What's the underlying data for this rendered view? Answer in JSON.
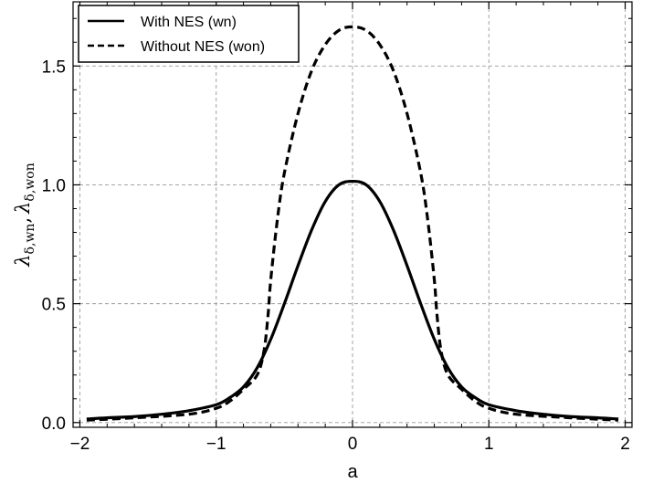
{
  "chart_data": {
    "type": "line",
    "xlabel": "a",
    "ylabel": {
      "symbol1": "λ",
      "sub1": "δ,wn",
      "separator": ",",
      "symbol2": "λ",
      "sub2": "δ,won"
    },
    "xlim": [
      -2.05,
      2.05
    ],
    "ylim": [
      -0.02,
      1.77
    ],
    "x_ticks": [
      -2,
      -1,
      0,
      1,
      2
    ],
    "x_tick_labels": [
      "−2",
      "−1",
      "0",
      "1",
      "2"
    ],
    "y_ticks": [
      0.0,
      0.5,
      1.0,
      1.5
    ],
    "y_tick_labels": [
      "0.0",
      "0.5",
      "1.0",
      "1.5"
    ],
    "grid": true,
    "legend_position": "top-left",
    "series": [
      {
        "name": "With NES (wn)",
        "style": "solid",
        "color": "#000000",
        "x": [
          -1.95,
          -1.8,
          -1.6,
          -1.4,
          -1.2,
          -1.0,
          -0.9,
          -0.8,
          -0.7,
          -0.6,
          -0.5,
          -0.4,
          -0.3,
          -0.2,
          -0.1,
          0.0,
          0.1,
          0.2,
          0.3,
          0.4,
          0.5,
          0.6,
          0.7,
          0.8,
          0.9,
          1.0,
          1.2,
          1.4,
          1.6,
          1.8,
          1.95
        ],
        "y": [
          0.015,
          0.02,
          0.025,
          0.035,
          0.05,
          0.075,
          0.105,
          0.15,
          0.23,
          0.35,
          0.5,
          0.66,
          0.81,
          0.93,
          1.0,
          1.015,
          1.0,
          0.93,
          0.81,
          0.66,
          0.5,
          0.35,
          0.23,
          0.15,
          0.105,
          0.075,
          0.05,
          0.035,
          0.025,
          0.02,
          0.015
        ]
      },
      {
        "name": "Without NES (won)",
        "style": "dashed",
        "color": "#000000",
        "x": [
          -1.95,
          -1.6,
          -1.2,
          -1.0,
          -0.9,
          -0.8,
          -0.7,
          -0.65,
          -0.62,
          -0.6,
          -0.55,
          -0.5,
          -0.4,
          -0.3,
          -0.2,
          -0.1,
          0.0,
          0.1,
          0.2,
          0.3,
          0.4,
          0.5,
          0.55,
          0.6,
          0.62,
          0.65,
          0.7,
          0.8,
          0.9,
          1.0,
          1.2,
          1.6,
          1.95
        ],
        "y": [
          0.01,
          0.02,
          0.035,
          0.06,
          0.09,
          0.14,
          0.2,
          0.3,
          0.45,
          0.6,
          0.86,
          1.05,
          1.3,
          1.48,
          1.59,
          1.65,
          1.665,
          1.65,
          1.59,
          1.48,
          1.3,
          1.05,
          0.86,
          0.6,
          0.45,
          0.3,
          0.2,
          0.14,
          0.09,
          0.06,
          0.035,
          0.02,
          0.01
        ]
      }
    ]
  }
}
